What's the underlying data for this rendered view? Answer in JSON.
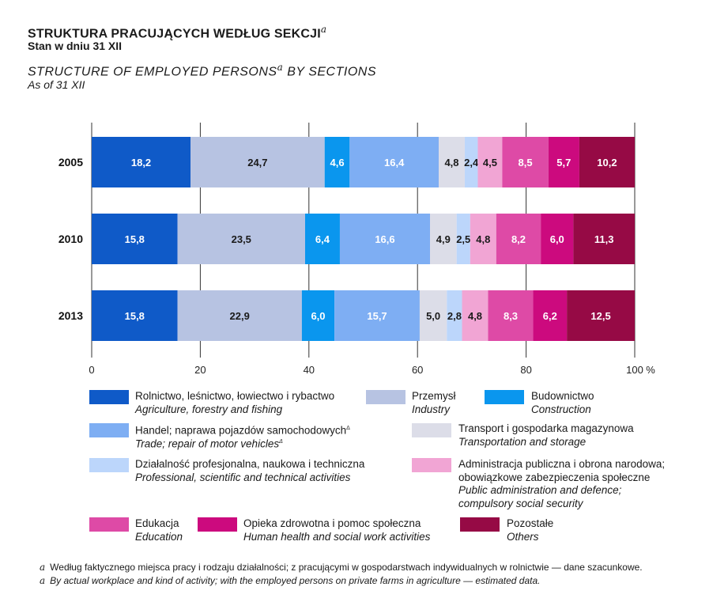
{
  "header": {
    "title": "STRUKTURA PRACUJĄCYCH WEDŁUG SEKCJI",
    "title_mark": "a",
    "subtitle": "Stan w dniu 31 XII",
    "title_en": "STRUCTURE OF EMPLOYED PERSONS",
    "title_en_mark": "a",
    "title_en_rest": " BY SECTIONS",
    "subtitle_en": "As of 31 XII"
  },
  "chart_data": {
    "type": "bar",
    "orientation": "horizontal",
    "stacked": true,
    "categories": [
      "2005",
      "2010",
      "2013"
    ],
    "x_ticks": [
      "0",
      "20",
      "40",
      "60",
      "80",
      "100"
    ],
    "x_unit": "%",
    "xlim": [
      0,
      100
    ],
    "grid": true,
    "legend_position": "bottom",
    "series": [
      {
        "name": "Rolnictwo, leśnictwo, łowiectwo i rybactwo",
        "name_en": "Agriculture, forestry and fishing",
        "color": "#0f5ac8",
        "values": [
          18.2,
          15.8,
          15.8
        ],
        "labels": [
          "18,2",
          "15,8",
          "15,8"
        ]
      },
      {
        "name": "Przemysł",
        "name_en": "Industry",
        "color": "#b7c3e2",
        "values": [
          24.7,
          23.5,
          22.9
        ],
        "labels": [
          "24,7",
          "23,5",
          "22,9"
        ]
      },
      {
        "name": "Budownictwo",
        "name_en": "Construction",
        "color": "#0a96ee",
        "values": [
          4.6,
          6.4,
          6.0
        ],
        "labels": [
          "4,6",
          "6,4",
          "6,0"
        ]
      },
      {
        "name": "Handel; naprawa pojazdów samochodowych",
        "name_en": "Trade; repair of motor vehicles",
        "color": "#7eaef3",
        "values": [
          16.4,
          16.6,
          15.7
        ],
        "labels": [
          "16,4",
          "16,6",
          "15,7"
        ]
      },
      {
        "name": "Transport i gospodarka magazynowa",
        "name_en": "Transportation and storage",
        "color": "#dcdde8",
        "values": [
          4.8,
          4.9,
          5.0
        ],
        "labels": [
          "4,8",
          "4,9",
          "5,0"
        ]
      },
      {
        "name": "Działalność profesjonalna, naukowa i techniczna",
        "name_en": "Professional, scientific and technical activities",
        "color": "#bcd6fb",
        "values": [
          2.4,
          2.5,
          2.8
        ],
        "labels": [
          "2,4",
          "2,5",
          "2,8"
        ]
      },
      {
        "name": "Administracja publiczna i obrona narodowa; obowiązkowe zabezpieczenia społeczne",
        "name_en": "Public administration and defence; compulsory social security",
        "color": "#f1a5d4",
        "values": [
          4.5,
          4.8,
          4.8
        ],
        "labels": [
          "4,5",
          "4,8",
          "4,8"
        ]
      },
      {
        "name": "Edukacja",
        "name_en": "Education",
        "color": "#de4aa6",
        "values": [
          8.5,
          8.2,
          8.3
        ],
        "labels": [
          "8,5",
          "8,2",
          "8,3"
        ]
      },
      {
        "name": "Opieka zdrowotna i pomoc społeczna",
        "name_en": "Human health and social work activities",
        "color": "#cc0a7e",
        "values": [
          5.7,
          6.0,
          6.2
        ],
        "labels": [
          "5,7",
          "6,0",
          "6,2"
        ]
      },
      {
        "name": "Pozostałe",
        "name_en": "Others",
        "color": "#960a45",
        "values": [
          10.2,
          11.3,
          12.5
        ],
        "labels": [
          "10,2",
          "11,3",
          "12,5"
        ]
      }
    ]
  },
  "legend": {
    "items": [
      {
        "pl": "Rolnictwo, leśnictwo, łowiectwo i rybactwo",
        "en": "Agriculture, forestry and fishing",
        "color": "#0f5ac8"
      },
      {
        "pl": "Przemysł",
        "en": "Industry",
        "color": "#b7c3e2"
      },
      {
        "pl": "Budownictwo",
        "en": "Construction",
        "color": "#0a96ee"
      },
      {
        "pl": "Handel; naprawa pojazdów samochodowych",
        "pl_mark": "Δ",
        "en": "Trade; repair of motor vehicles",
        "en_mark": "Δ",
        "color": "#7eaef3"
      },
      {
        "pl": "Transport i gospodarka magazynowa",
        "en": "Transportation and storage",
        "color": "#dcdde8"
      },
      {
        "pl": "Działalność profesjonalna, naukowa i techniczna",
        "en": "Professional, scientific and technical activities",
        "color": "#bcd6fb"
      },
      {
        "pl": "Administracja publiczna i obrona narodowa;",
        "pl2": "obowiązkowe zabezpieczenia społeczne",
        "en": "Public administration and defence;",
        "en2": "compulsory social security",
        "color": "#f1a5d4"
      },
      {
        "pl": "Edukacja",
        "en": "Education",
        "color": "#de4aa6"
      },
      {
        "pl": "Opieka zdrowotna i pomoc społeczna",
        "en": "Human health and social work activities",
        "color": "#cc0a7e"
      },
      {
        "pl": "Pozostałe",
        "en": "Others",
        "color": "#960a45"
      }
    ]
  },
  "footnotes": {
    "mark": "a",
    "pl": "Według faktycznego miejsca pracy i rodzaju działalności; z pracującymi w gospodarstwach indywidualnych w rolnictwie — dane szacunkowe.",
    "en": "By actual workplace and kind of activity; with the employed persons on private farms in agriculture — estimated data."
  }
}
